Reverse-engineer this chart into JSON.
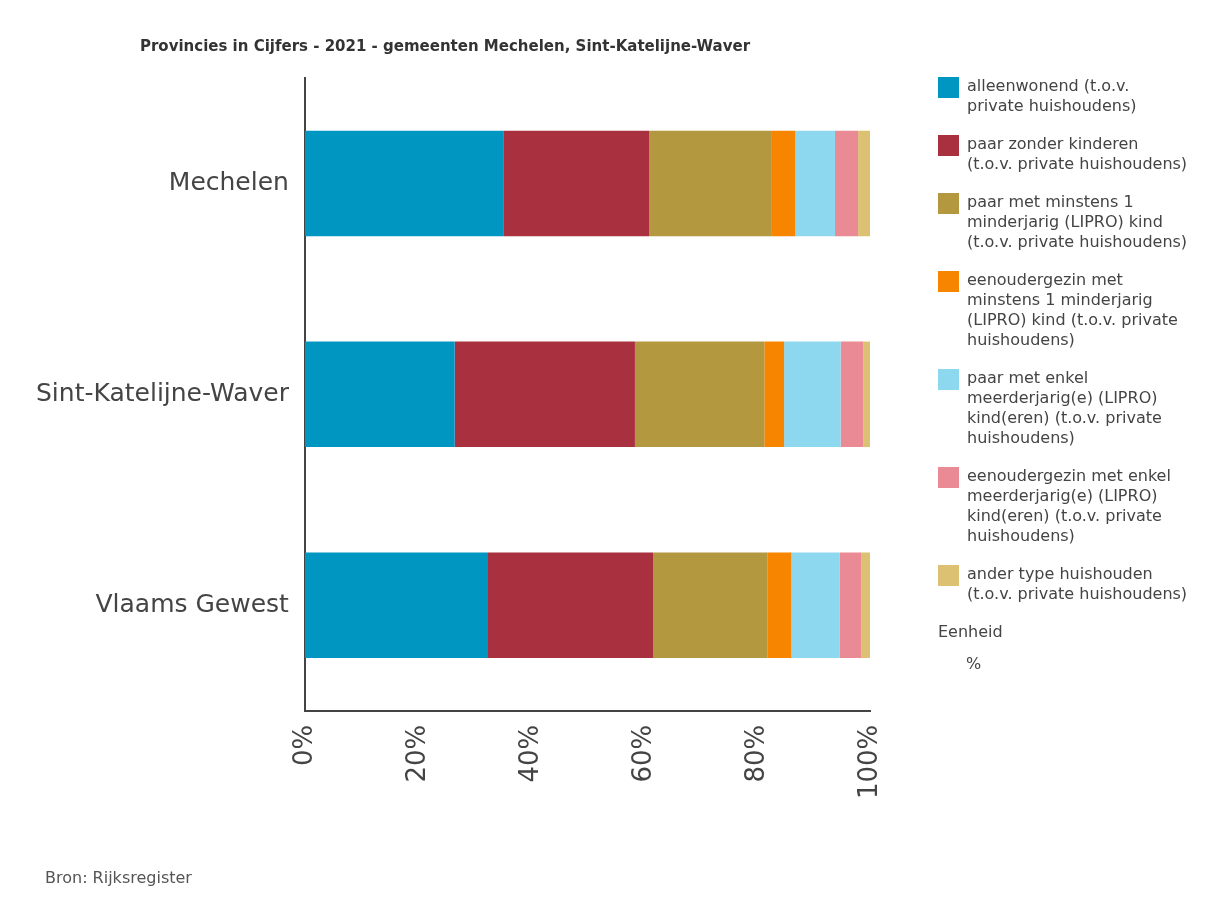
{
  "chart_data": {
    "type": "bar",
    "orientation": "horizontal",
    "stacked": true,
    "title": "Provincies in Cijfers - 2021 - gemeenten Mechelen, Sint-Katelijne-Waver",
    "categories": [
      "Mechelen",
      "Sint-Katelijne-Waver",
      "Vlaams Gewest"
    ],
    "series": [
      {
        "name": "alleenwonend (t.o.v. private huishoudens)",
        "color": "#0096c2",
        "values": [
          35.1,
          26.5,
          32.4
        ]
      },
      {
        "name": "paar zonder kinderen (t.o.v. private huishoudens)",
        "color": "#a8303f",
        "values": [
          25.8,
          31.9,
          29.2
        ]
      },
      {
        "name": "paar met minstens 1 minderjarig (LIPRO) kind (t.o.v. private huishoudens)",
        "color": "#b3983f",
        "values": [
          21.6,
          22.9,
          20.3
        ]
      },
      {
        "name": "eenoudergezin met minstens 1 minderjarig (LIPRO) kind (t.o.v. private huishoudens)",
        "color": "#f88500",
        "values": [
          4.3,
          3.5,
          4.2
        ]
      },
      {
        "name": "paar met enkel meerderjarig(e) (LIPRO) kind(eren) (t.o.v. private huishoudens)",
        "color": "#8dd8ef",
        "values": [
          7.0,
          10.0,
          8.5
        ]
      },
      {
        "name": "eenoudergezin met enkel meerderjarig(e) (LIPRO) kind(eren) (t.o.v. private huishoudens)",
        "color": "#e98a94",
        "values": [
          4.1,
          4.0,
          3.9
        ]
      },
      {
        "name": "ander type huishouden (t.o.v. private huishoudens)",
        "color": "#dbc171",
        "values": [
          2.1,
          1.2,
          1.5
        ]
      }
    ],
    "xlim": [
      0,
      100
    ],
    "xticks": [
      {
        "value": 0,
        "label": "0%"
      },
      {
        "value": 20,
        "label": "20%"
      },
      {
        "value": 40,
        "label": "40%"
      },
      {
        "value": 60,
        "label": "60%"
      },
      {
        "value": 80,
        "label": "80%"
      },
      {
        "value": 100,
        "label": "100%"
      }
    ],
    "grid": false,
    "legend": "right",
    "annotations": [
      "Eenheid",
      "%",
      "Bron: Rijksregister"
    ]
  }
}
